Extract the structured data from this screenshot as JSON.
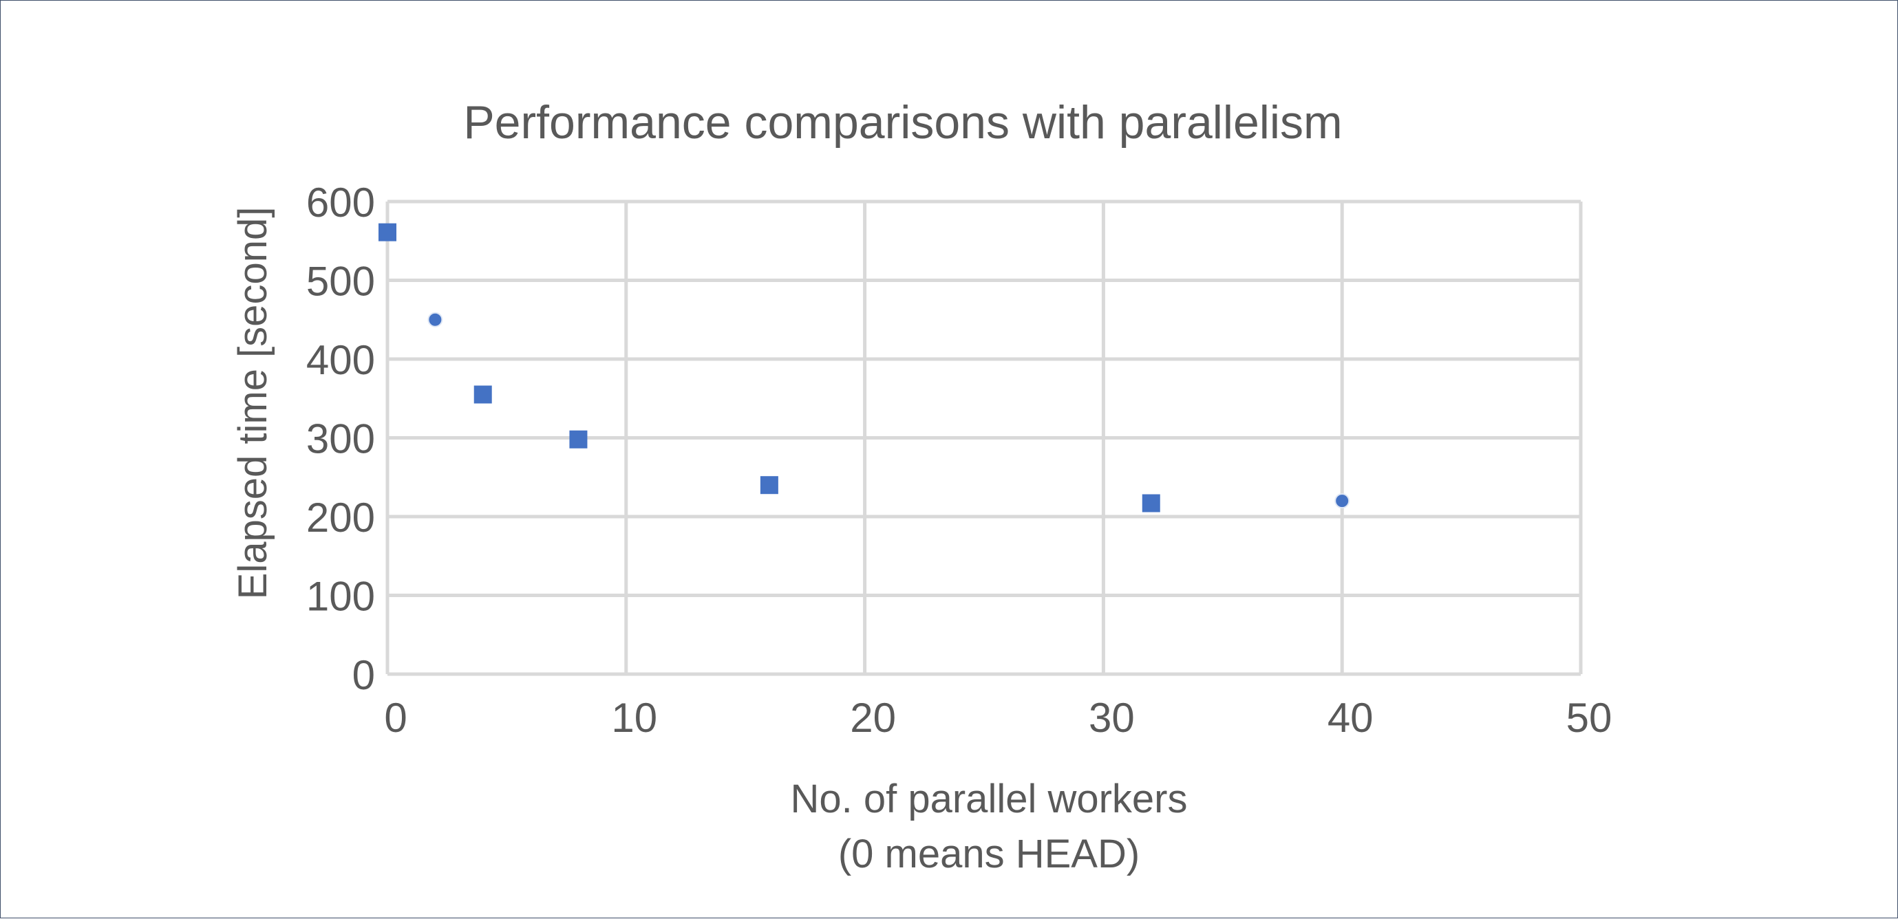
{
  "chart_data": {
    "type": "scatter",
    "title": "Performance comparisons with parallelism",
    "xlabel": "No. of parallel workers",
    "xlabel_line2": "(0 means HEAD)",
    "ylabel": "Elapsed time [second]",
    "xlim": [
      0,
      50
    ],
    "ylim": [
      0,
      600
    ],
    "xticks": [
      0,
      10,
      20,
      30,
      40,
      50
    ],
    "yticks": [
      0,
      100,
      200,
      300,
      400,
      500,
      600
    ],
    "xtick_labels": [
      "0",
      "10",
      "20",
      "30",
      "40",
      "50"
    ],
    "ytick_labels": [
      "0",
      "100",
      "200",
      "300",
      "400",
      "500",
      "600"
    ],
    "grid": true,
    "legend": "none",
    "marker_color": "#4472c4",
    "points": [
      {
        "x": 0,
        "y": 561,
        "marker": "square"
      },
      {
        "x": 2,
        "y": 450,
        "marker": "circle"
      },
      {
        "x": 4,
        "y": 355,
        "marker": "square"
      },
      {
        "x": 8,
        "y": 298,
        "marker": "square"
      },
      {
        "x": 16,
        "y": 240,
        "marker": "square"
      },
      {
        "x": 32,
        "y": 217,
        "marker": "square"
      },
      {
        "x": 40,
        "y": 220,
        "marker": "circle"
      }
    ]
  }
}
